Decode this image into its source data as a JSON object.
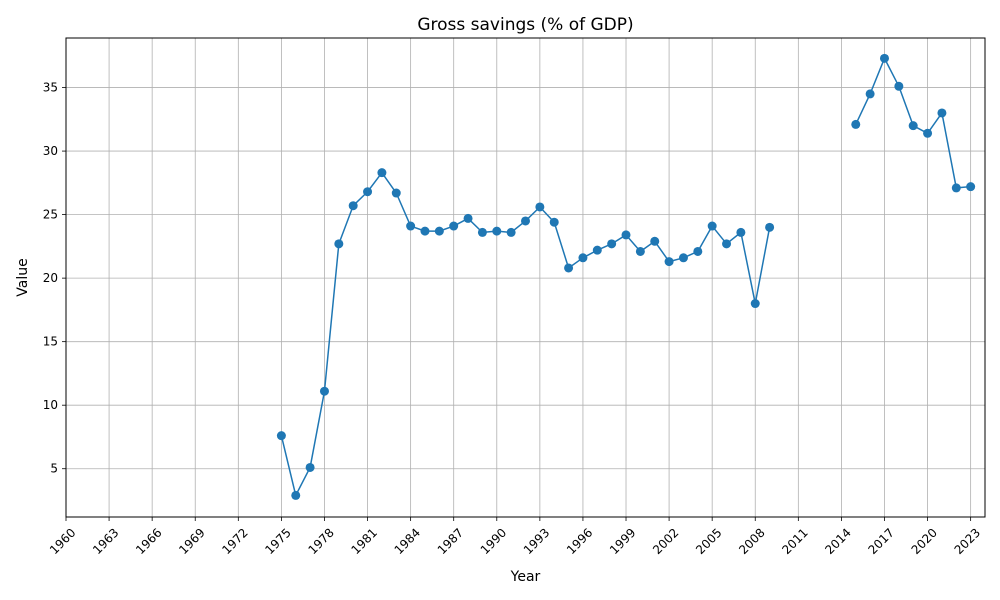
{
  "chart_data": {
    "type": "line",
    "title": "Gross savings (% of GDP)",
    "xlabel": "Year",
    "ylabel": "Value",
    "xlim": [
      1960,
      2024
    ],
    "ylim": [
      1.2,
      38.9
    ],
    "xticks": [
      1960,
      1963,
      1966,
      1969,
      1972,
      1975,
      1978,
      1981,
      1984,
      1987,
      1990,
      1993,
      1996,
      1999,
      2002,
      2005,
      2008,
      2011,
      2014,
      2017,
      2020,
      2023
    ],
    "yticks": [
      5,
      10,
      15,
      20,
      25,
      30,
      35
    ],
    "grid": true,
    "series": [
      {
        "color": "#1f77b4",
        "marker": "circle",
        "x": [
          1975,
          1976,
          1977,
          1978,
          1979,
          1980,
          1981,
          1982,
          1983,
          1984,
          1985,
          1986,
          1987,
          1988,
          1989,
          1990,
          1991,
          1992,
          1993,
          1994,
          1995,
          1996,
          1997,
          1998,
          1999,
          2000,
          2001,
          2002,
          2003,
          2004,
          2005,
          2006,
          2007,
          2008,
          2009,
          2010,
          2011,
          2012,
          2013,
          2014,
          2015,
          2016,
          2017,
          2018,
          2019,
          2020,
          2021,
          2022,
          2023
        ],
        "values": [
          7.6,
          2.9,
          5.1,
          11.1,
          22.7,
          25.7,
          26.8,
          28.3,
          26.7,
          24.1,
          23.7,
          23.7,
          24.1,
          24.7,
          23.6,
          23.7,
          23.6,
          24.5,
          25.6,
          24.4,
          20.8,
          21.6,
          22.2,
          22.7,
          23.4,
          22.1,
          22.9,
          21.3,
          21.6,
          22.1,
          24.1,
          22.7,
          23.6,
          18.0,
          24.0,
          null,
          null,
          null,
          null,
          null,
          32.1,
          34.5,
          37.3,
          35.1,
          32.0,
          31.4,
          33.0,
          27.1,
          27.2
        ]
      }
    ]
  }
}
